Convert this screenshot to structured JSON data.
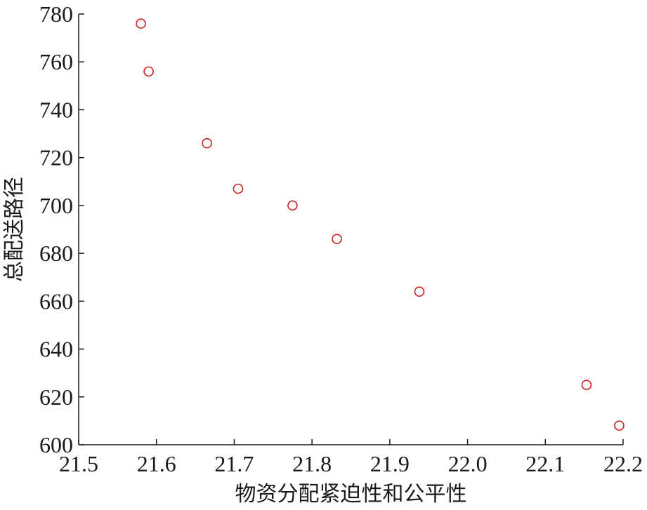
{
  "chart_data": {
    "type": "scatter",
    "title": "",
    "xlabel": "物资分配紧迫性和公平性",
    "ylabel": "总配送路径",
    "xlim": [
      21.5,
      22.2
    ],
    "ylim": [
      600,
      780
    ],
    "xticks": [
      "21.5",
      "21.6",
      "21.7",
      "21.8",
      "21.9",
      "22.0",
      "22.1",
      "22.2"
    ],
    "yticks": [
      "600",
      "620",
      "640",
      "660",
      "680",
      "700",
      "720",
      "740",
      "760",
      "780"
    ],
    "grid": false,
    "marker": "circle-open",
    "marker_color": "#cc2222",
    "series": [
      {
        "points": [
          {
            "x": 21.58,
            "y": 776
          },
          {
            "x": 21.59,
            "y": 756
          },
          {
            "x": 21.665,
            "y": 726
          },
          {
            "x": 21.705,
            "y": 707
          },
          {
            "x": 21.775,
            "y": 700
          },
          {
            "x": 21.832,
            "y": 686
          },
          {
            "x": 21.938,
            "y": 664
          },
          {
            "x": 22.153,
            "y": 625
          },
          {
            "x": 22.195,
            "y": 608
          }
        ]
      }
    ]
  }
}
